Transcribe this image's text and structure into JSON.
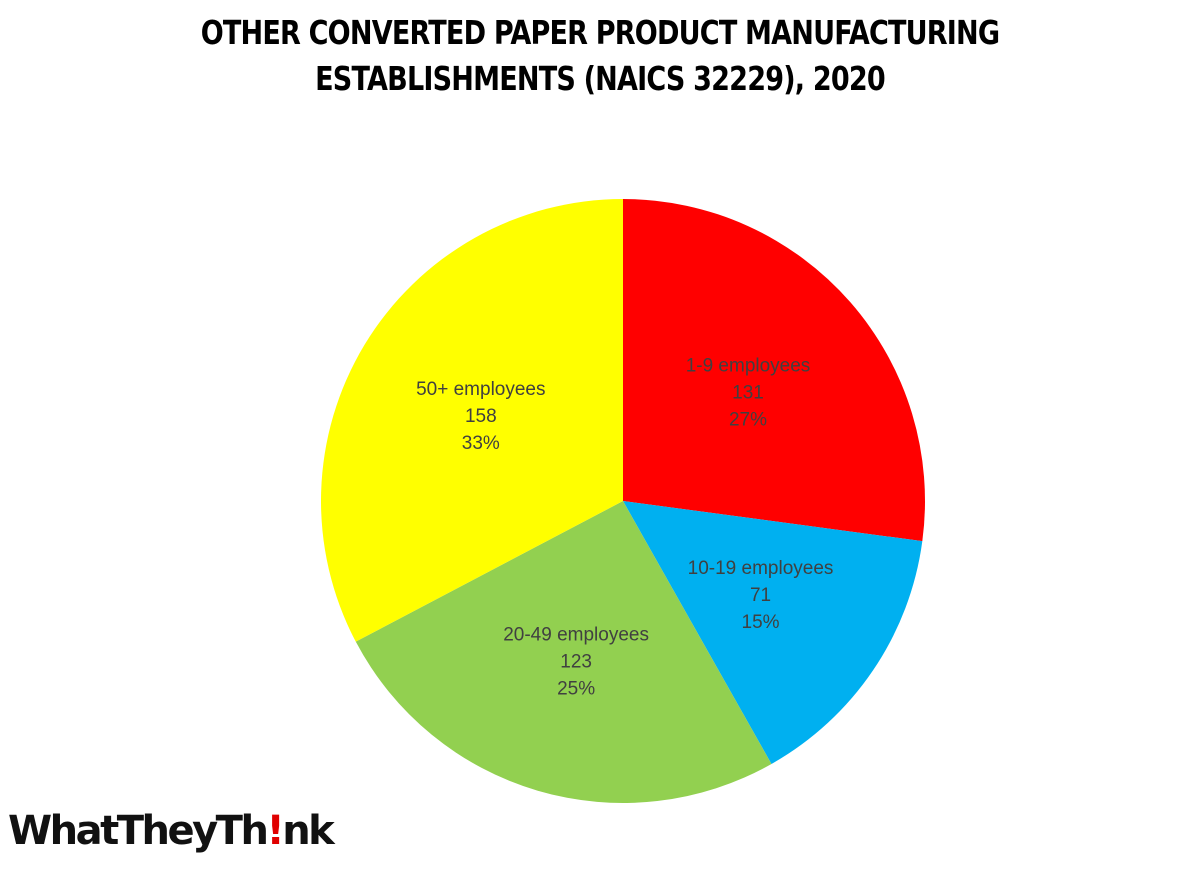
{
  "chart_data": {
    "type": "pie",
    "title_lines": [
      "OTHER CONVERTED PAPER PRODUCT  MANUFACTURING",
      "ESTABLISHMENTS (NAICS 32229), 2020"
    ],
    "slices": [
      {
        "label": "1-9 employees",
        "value": 131,
        "percent_label": "27%",
        "color": "#ff0000"
      },
      {
        "label": "10-19 employees",
        "value": 71,
        "percent_label": "15%",
        "color": "#00b0f0"
      },
      {
        "label": "20-49 employees",
        "value": 123,
        "percent_label": "25%",
        "color": "#92d050"
      },
      {
        "label": "50+ employees",
        "value": 158,
        "percent_label": "33%",
        "color": "#ffff00"
      }
    ],
    "start_angle": "12 o'clock",
    "direction": "clockwise",
    "legend": "none"
  },
  "logo": {
    "text_before": "WhatTheyTh",
    "text_mark": "!",
    "text_after": "nk",
    "mark_color": "#e00000"
  }
}
